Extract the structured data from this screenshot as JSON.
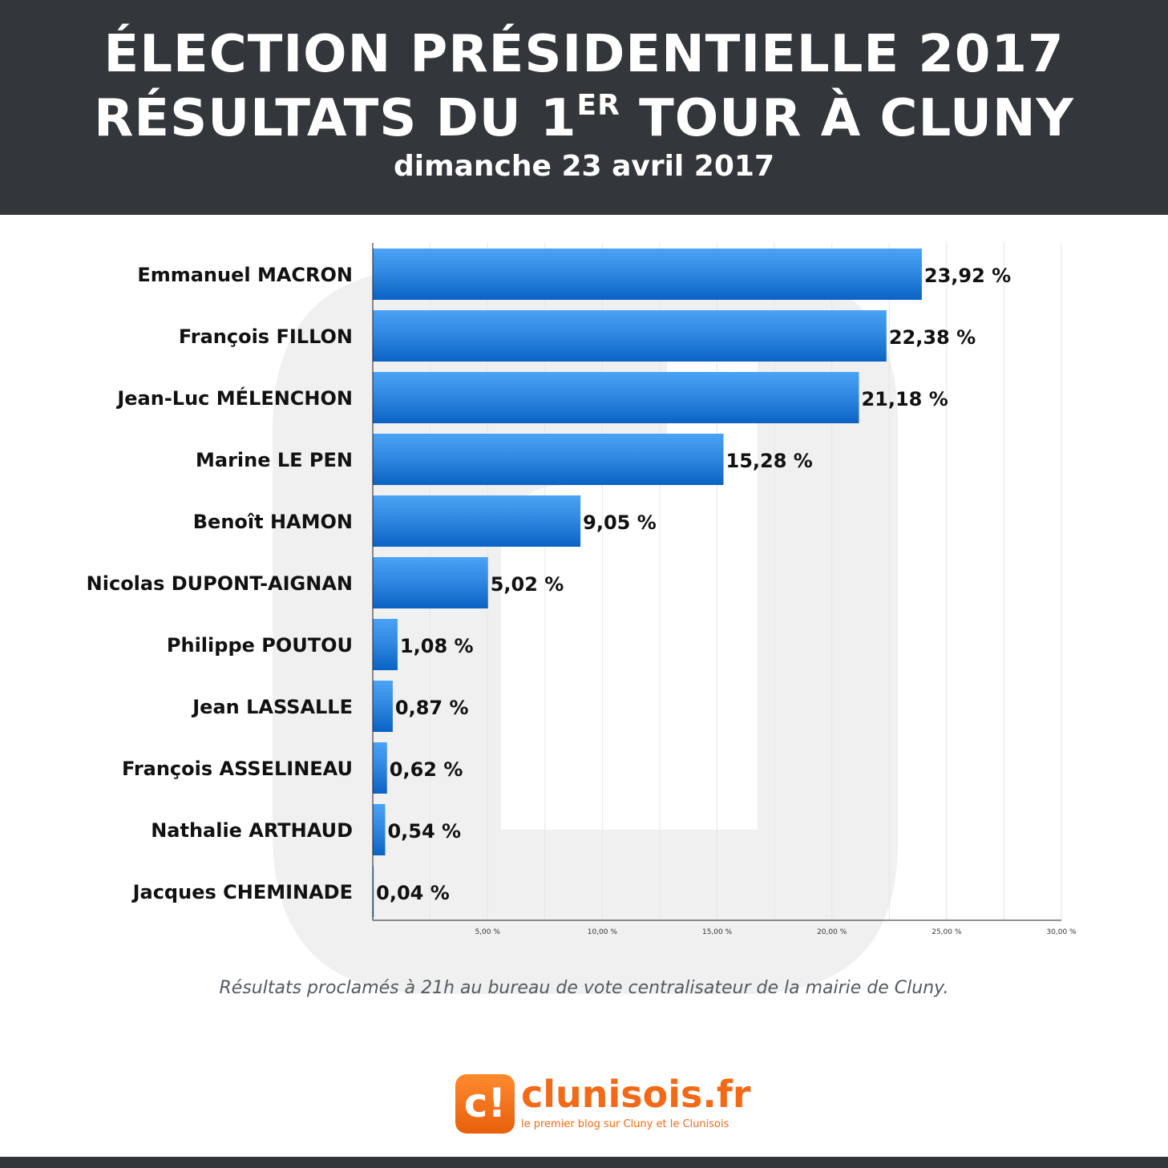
{
  "header": {
    "title_line1": "ÉLECTION PRÉSIDENTIELLE 2017",
    "title_line2_pre": "RÉSULTATS DU 1",
    "title_line2_sup": "ER",
    "title_line2_post": " TOUR À CLUNY",
    "subtitle": "dimanche 23 avril 2017"
  },
  "chart_data": {
    "type": "bar",
    "orientation": "horizontal",
    "title": "ÉLECTION PRÉSIDENTIELLE 2017 RÉSULTATS DU 1ER TOUR À CLUNY",
    "subtitle": "dimanche 23 avril 2017",
    "xlabel": "",
    "ylabel": "",
    "xlim": [
      0,
      30
    ],
    "grid": true,
    "legend": "none",
    "categories": [
      "Emmanuel MACRON",
      "François FILLON",
      "Jean-Luc MÉLENCHON",
      "Marine LE PEN",
      "Benoît HAMON",
      "Nicolas DUPONT-AIGNAN",
      "Philippe POUTOU",
      "Jean LASSALLE",
      "François ASSELINEAU",
      "Nathalie ARTHAUD",
      "Jacques CHEMINADE"
    ],
    "values": [
      23.92,
      22.38,
      21.18,
      15.28,
      9.05,
      5.02,
      1.08,
      0.87,
      0.62,
      0.54,
      0.04
    ],
    "data_labels": [
      "23,92 %",
      "22,38 %",
      "21,18 %",
      "15,28 %",
      "9,05 %",
      "5,02 %",
      "1,08 %",
      "0,87 %",
      "0,62 %",
      "0,54 %",
      "0,04 %"
    ],
    "x_tick_values": [
      5,
      10,
      15,
      20,
      25,
      30
    ],
    "x_tick_labels": [
      "5,00 %",
      "10,00 %",
      "15,00 %",
      "20,00 %",
      "25,00 %",
      "30,00 %"
    ],
    "colors": {
      "bar_light": "#4aa3f5",
      "bar_dark": "#0a62c4",
      "grid": "#e6e6e6",
      "axis": "#222222"
    }
  },
  "footnote": "Résultats proclamés à 21h au bureau de vote centralisateur de la mairie de Cluny.",
  "logo": {
    "glyph": "c!",
    "name": "clunisois.fr",
    "tagline": "le premier blog sur Cluny et le Clunisois",
    "color": "#f26a17"
  },
  "colors": {
    "header_bg": "#33363b",
    "header_text": "#ffffff",
    "footnote_text": "#555a60"
  }
}
